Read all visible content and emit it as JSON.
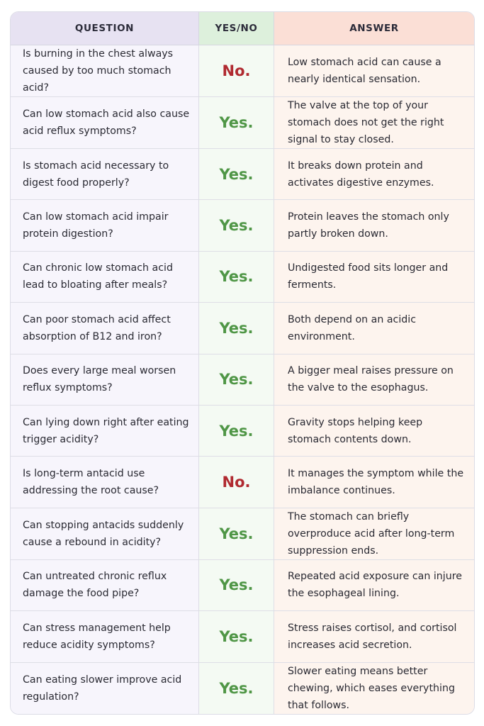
{
  "headers": {
    "question": "QUESTION",
    "yesno": "YES/NO",
    "answer": "ANSWER"
  },
  "colors": {
    "yes": "#4f9646",
    "no": "#b02a30"
  },
  "rows": [
    {
      "question": "Is burning in the chest always caused by too much stomach acid?",
      "verdict": "No.",
      "answer": "Low stomach acid can cause a nearly identical sensation."
    },
    {
      "question": "Can low stomach acid also cause acid reflux symptoms?",
      "verdict": "Yes.",
      "answer": "The valve at the top of your stomach does not get the right signal to stay closed."
    },
    {
      "question": "Is stomach acid necessary to digest food properly?",
      "verdict": "Yes.",
      "answer": "It breaks down protein and activates digestive enzymes."
    },
    {
      "question": "Can low stomach acid impair protein digestion?",
      "verdict": "Yes.",
      "answer": "Protein leaves the stomach only partly broken down."
    },
    {
      "question": "Can chronic low stomach acid lead to bloating after meals?",
      "verdict": "Yes.",
      "answer": "Undigested food sits longer and ferments."
    },
    {
      "question": "Can poor stomach acid affect absorption of B12 and iron?",
      "verdict": "Yes.",
      "answer": "Both depend on an acidic environment."
    },
    {
      "question": "Does every large meal worsen reflux symptoms?",
      "verdict": "Yes.",
      "answer": "A bigger meal raises pressure on the valve to the esophagus."
    },
    {
      "question": "Can lying down right after eating trigger acidity?",
      "verdict": "Yes.",
      "answer": "Gravity stops helping keep stomach contents down."
    },
    {
      "question": "Is long-term antacid use addressing the root cause?",
      "verdict": "No.",
      "answer": "It manages the symptom while the imbalance continues."
    },
    {
      "question": "Can stopping antacids suddenly cause a rebound in acidity?",
      "verdict": "Yes.",
      "answer": "The stomach can briefly overproduce acid after long-term suppression ends."
    },
    {
      "question": "Can untreated chronic reflux damage the food pipe?",
      "verdict": "Yes.",
      "answer": "Repeated acid exposure can injure the esophageal lining."
    },
    {
      "question": "Can stress management help reduce acidity symptoms?",
      "verdict": "Yes.",
      "answer": "Stress raises cortisol, and cortisol increases acid secretion."
    },
    {
      "question": "Can eating slower improve acid regulation?",
      "verdict": "Yes.",
      "answer": "Slower eating means better chewing, which eases everything that follows."
    }
  ]
}
